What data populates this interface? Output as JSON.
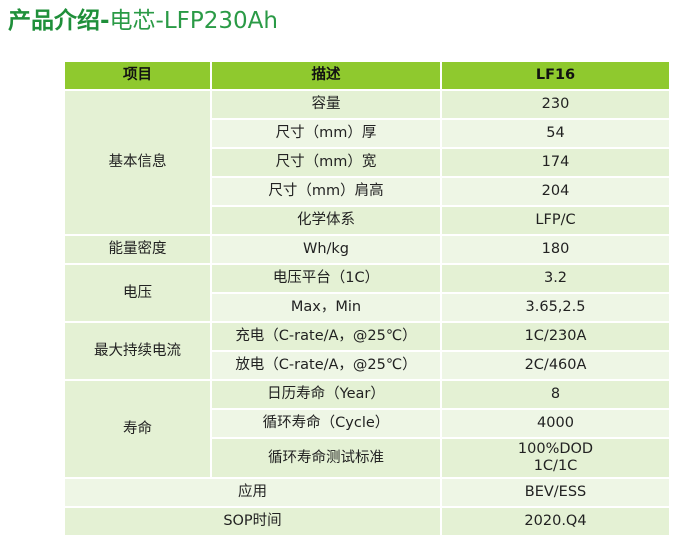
{
  "title": {
    "bold": "产品介绍-",
    "regular": "电芯-LFP230Ah"
  },
  "colors": {
    "header_bg": "#8fc92e",
    "row_bg": "#e4f1d4",
    "row_alt_bg": "#eef6e5",
    "title": "#1f8f3a"
  },
  "table": {
    "headers": [
      "项目",
      "描述",
      "LF16"
    ],
    "groups": [
      {
        "category": "基本信息",
        "rows": [
          {
            "desc": "容量",
            "value": "230"
          },
          {
            "desc": "尺寸（mm）厚",
            "value": "54"
          },
          {
            "desc": "尺寸（mm）宽",
            "value": "174"
          },
          {
            "desc": "尺寸（mm）肩高",
            "value": "204"
          },
          {
            "desc": "化学体系",
            "value": "LFP/C"
          }
        ]
      },
      {
        "category": "能量密度",
        "rows": [
          {
            "desc": "Wh/kg",
            "value": "180"
          }
        ]
      },
      {
        "category": "电压",
        "rows": [
          {
            "desc": "电压平台（1C）",
            "value": "3.2"
          },
          {
            "desc": "Max，Min",
            "value": "3.65,2.5"
          }
        ]
      },
      {
        "category": "最大持续电流",
        "rows": [
          {
            "desc": "充电（C-rate/A，@25℃）",
            "value": "1C/230A"
          },
          {
            "desc": "放电（C-rate/A，@25℃）",
            "value": "2C/460A"
          }
        ]
      },
      {
        "category": "寿命",
        "rows": [
          {
            "desc": "日历寿命（Year）",
            "value": "8"
          },
          {
            "desc": "循环寿命（Cycle）",
            "value": "4000"
          },
          {
            "desc": "循环寿命测试标准",
            "value": "100%DOD\n1C/1C"
          }
        ]
      }
    ],
    "footer_rows": [
      {
        "label": "应用",
        "value": "BEV/ESS"
      },
      {
        "label": "SOP时间",
        "value": "2020.Q4"
      }
    ]
  }
}
